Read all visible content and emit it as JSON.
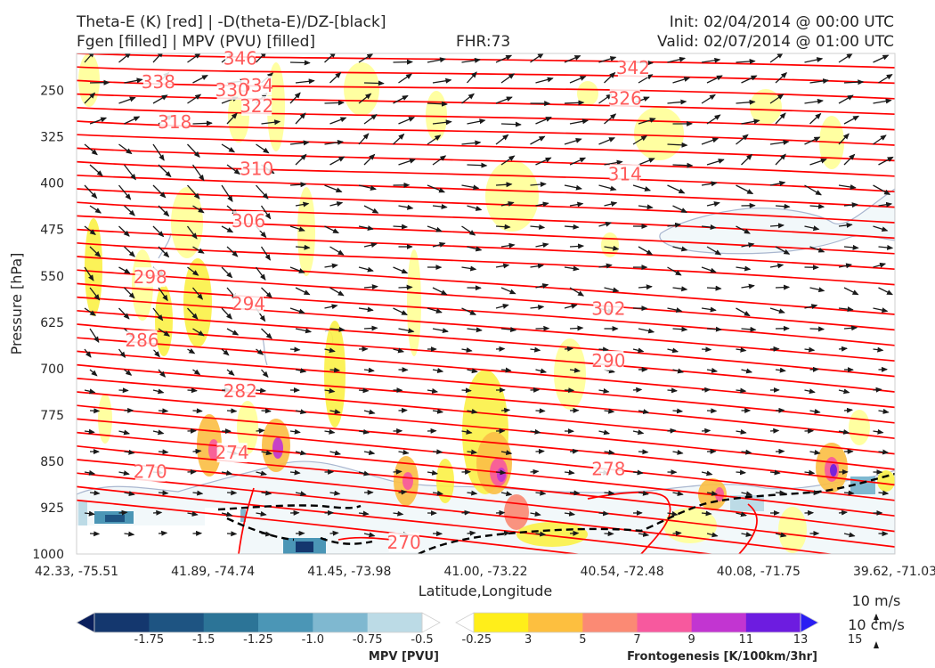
{
  "header": {
    "title_line1": "Theta-E (K) [red] | -D(theta-E)/DZ-[black]",
    "title_line2": "Fgen [filled] | MPV (PVU) [filled]",
    "fhr": "FHR:73",
    "init": "Init: 02/04/2014 @ 00:00 UTC",
    "valid": "Valid: 02/07/2014 @ 01:00 UTC"
  },
  "colors": {
    "theta_e": "#ff0000",
    "label": "#ff5a5a",
    "fgen_3": "#ffff99",
    "fgen_5": "#fbf14a",
    "fgen_7": "#fbbf46",
    "fgen_9": "#fa8a74",
    "fgen_11": "#f7599e",
    "fgen_13": "#c235d1",
    "fgen_15": "#6d1ce0",
    "mpv_light": "#f2f8fa",
    "mpv_contour": "#a9b6cf",
    "arrow": "#1a1a1a"
  },
  "chart_data": {
    "type": "cross-section",
    "xlabel": "Latitude,Longitude",
    "ylabel": "Pressure [hPa]",
    "x_ticks": [
      "42.33, -75.51",
      "41.89, -74.74",
      "41.45, -73.98",
      "41.00, -73.22",
      "40.54, -72.48",
      "40.08, -71.75",
      "39.62, -71.03"
    ],
    "y_ticks": [
      250,
      325,
      400,
      475,
      550,
      625,
      700,
      775,
      850,
      925,
      1000
    ],
    "ylim": [
      1000,
      190
    ],
    "theta_e_labels": [
      {
        "value": 338,
        "x": 0.1,
        "p": 236
      },
      {
        "value": 346,
        "x": 0.2,
        "p": 198
      },
      {
        "value": 334,
        "x": 0.22,
        "p": 242
      },
      {
        "value": 330,
        "x": 0.19,
        "p": 249
      },
      {
        "value": 342,
        "x": 0.68,
        "p": 213
      },
      {
        "value": 322,
        "x": 0.22,
        "p": 275
      },
      {
        "value": 326,
        "x": 0.67,
        "p": 263
      },
      {
        "value": 318,
        "x": 0.12,
        "p": 301
      },
      {
        "value": 310,
        "x": 0.22,
        "p": 377
      },
      {
        "value": 314,
        "x": 0.67,
        "p": 385
      },
      {
        "value": 306,
        "x": 0.21,
        "p": 461
      },
      {
        "value": 298,
        "x": 0.09,
        "p": 552
      },
      {
        "value": 302,
        "x": 0.65,
        "p": 603
      },
      {
        "value": 294,
        "x": 0.21,
        "p": 595
      },
      {
        "value": 286,
        "x": 0.08,
        "p": 654
      },
      {
        "value": 290,
        "x": 0.65,
        "p": 687
      },
      {
        "value": 282,
        "x": 0.2,
        "p": 736
      },
      {
        "value": 274,
        "x": 0.19,
        "p": 836
      },
      {
        "value": 270,
        "x": 0.09,
        "p": 867
      },
      {
        "value": 278,
        "x": 0.65,
        "p": 862
      },
      {
        "value": 270,
        "x": 0.4,
        "p": 981
      }
    ],
    "mpv_colorbar": {
      "title": "MPV [PVU]",
      "levels": [
        "-1.75",
        "-1.5",
        "-1.25",
        "-1.0",
        "-0.75",
        "-0.5",
        "-0.25"
      ],
      "colors": [
        "#0a1f5c",
        "#14376e",
        "#1e5482",
        "#2c7497",
        "#4b96b6",
        "#7fb8d0",
        "#bcdbe6",
        "#ffffff"
      ]
    },
    "fgen_colorbar": {
      "title": "Frontogenesis [K/100km/3hr]",
      "levels": [
        "3",
        "5",
        "7",
        "9",
        "11",
        "13",
        "15"
      ],
      "colors": [
        "#ffffff",
        "#ffee1a",
        "#fdbf3f",
        "#fb8a74",
        "#f7599e",
        "#c235d1",
        "#6d1ce0",
        "#2a1ef2"
      ]
    },
    "vector_key": {
      "label1": "10 m/s",
      "label2": "10 cm/s"
    }
  }
}
